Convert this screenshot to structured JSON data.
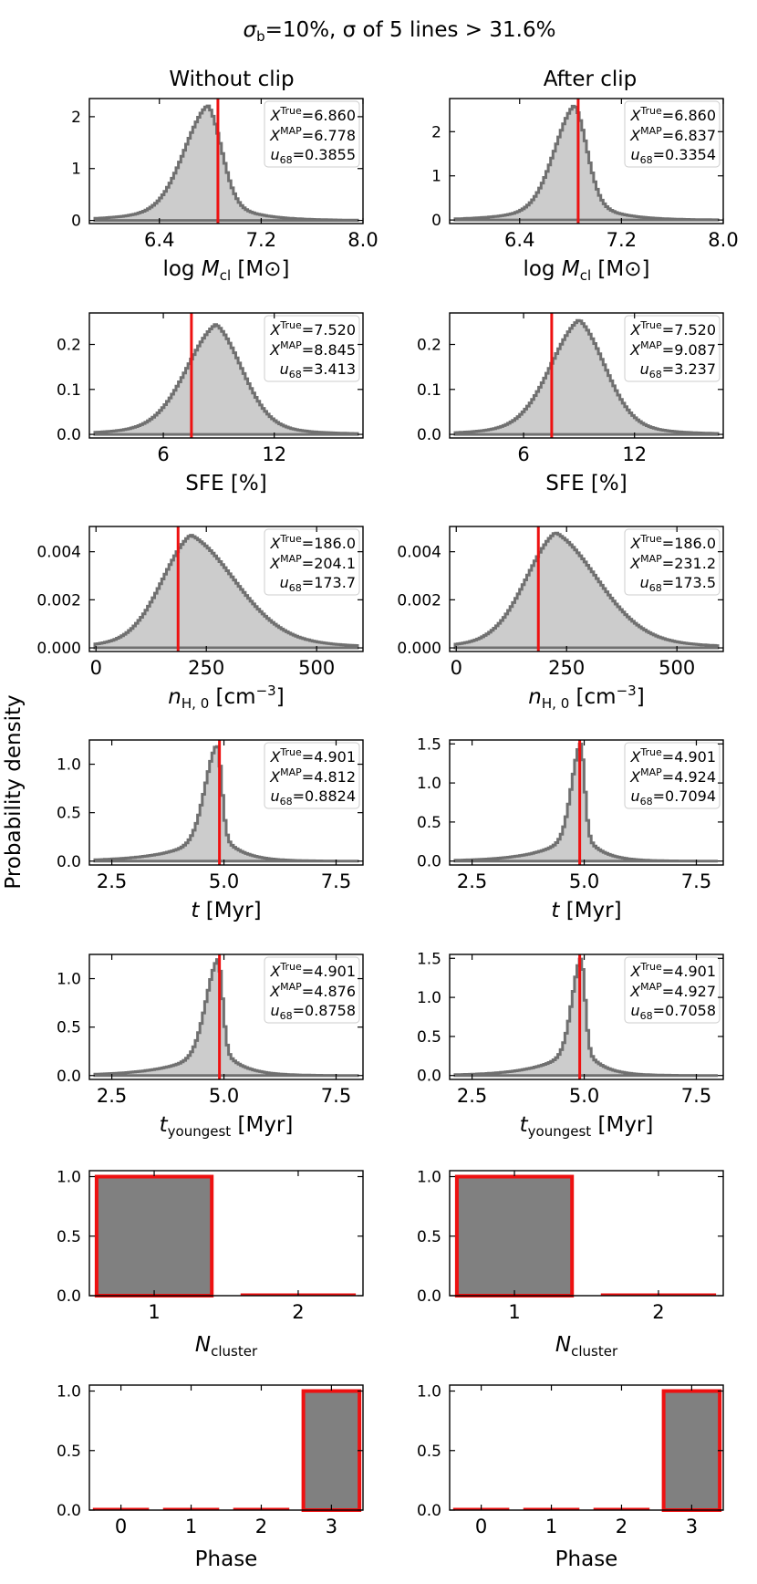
{
  "figure": {
    "title": "σb=10%, σ of 5 lines > 31.6%",
    "title_main": "σ",
    "title_sub": "b",
    "title_rest": "=10%, σ of 5 lines > 31.6%",
    "col_titles": [
      "Without clip",
      "After clip"
    ],
    "ylabel": "Probability density",
    "stat_labels": {
      "true_sup": "True",
      "map_sup": "MAP",
      "u_sub": "68"
    }
  },
  "chart_data": [
    {
      "id": "mcl-noclip",
      "type": "histogram",
      "row": 0,
      "col": 0,
      "xlabel": "log Mcl [M⊙]",
      "xlabel_parts": [
        "log ",
        "M",
        "cl",
        " [M",
        "⊙",
        "]"
      ],
      "xlim": [
        5.85,
        8.0
      ],
      "ylim": [
        -0.06,
        2.35
      ],
      "xticks": [
        6.4,
        7.2,
        8.0
      ],
      "xticklabels": [
        "6.4",
        "7.2",
        "8.0"
      ],
      "yticks": [
        0,
        1,
        2
      ],
      "yticklabels": [
        "0",
        "1",
        "2"
      ],
      "peak_x": 6.78,
      "peak_y": 2.22,
      "spread_left": 0.19,
      "spread_right": 0.11,
      "tail_left": 0.32,
      "tail_right": 0.24,
      "true_x": 6.86,
      "stats": {
        "true": "6.860",
        "map": "6.778",
        "u68": "0.3855"
      }
    },
    {
      "id": "mcl-clip",
      "type": "histogram",
      "row": 0,
      "col": 1,
      "xlabel": "log Mcl [M⊙]",
      "xlabel_parts": [
        "log ",
        "M",
        "cl",
        " [M",
        "⊙",
        "]"
      ],
      "xlim": [
        5.85,
        8.0
      ],
      "ylim": [
        -0.08,
        2.75
      ],
      "xticks": [
        6.4,
        7.2,
        8.0
      ],
      "xticklabels": [
        "6.4",
        "7.2",
        "8.0"
      ],
      "yticks": [
        0,
        1,
        2
      ],
      "yticklabels": [
        "0",
        "1",
        "2"
      ],
      "peak_x": 6.83,
      "peak_y": 2.6,
      "spread_left": 0.16,
      "spread_right": 0.1,
      "tail_left": 0.28,
      "tail_right": 0.22,
      "true_x": 6.86,
      "stats": {
        "true": "6.860",
        "map": "6.837",
        "u68": "0.3354"
      }
    },
    {
      "id": "sfe-noclip",
      "type": "histogram",
      "row": 1,
      "col": 0,
      "xlabel": "SFE [%]",
      "xlabel_parts": [
        "SFE [%]"
      ],
      "xlim": [
        2.0,
        16.8
      ],
      "ylim": [
        -0.008,
        0.27
      ],
      "xticks": [
        6,
        12
      ],
      "xticklabels": [
        "6",
        "12"
      ],
      "yticks": [
        0.0,
        0.1,
        0.2
      ],
      "yticklabels": [
        "0.0",
        "0.1",
        "0.2"
      ],
      "peak_x": 8.85,
      "peak_y": 0.245,
      "spread_left": 1.65,
      "spread_right": 1.45,
      "tail_left": 2.4,
      "tail_right": 2.1,
      "true_x": 7.52,
      "stats": {
        "true": "7.520",
        "map": "8.845",
        "u68": "3.413"
      }
    },
    {
      "id": "sfe-clip",
      "type": "histogram",
      "row": 1,
      "col": 1,
      "xlabel": "SFE [%]",
      "xlabel_parts": [
        "SFE [%]"
      ],
      "xlim": [
        2.0,
        16.8
      ],
      "ylim": [
        -0.008,
        0.27
      ],
      "xticks": [
        6,
        12
      ],
      "xticklabels": [
        "6",
        "12"
      ],
      "yticks": [
        0.0,
        0.1,
        0.2
      ],
      "yticklabels": [
        "0.0",
        "0.1",
        "0.2"
      ],
      "peak_x": 9.0,
      "peak_y": 0.255,
      "spread_left": 1.6,
      "spread_right": 1.45,
      "tail_left": 2.3,
      "tail_right": 2.1,
      "true_x": 7.52,
      "stats": {
        "true": "7.520",
        "map": "9.087",
        "u68": "3.237"
      }
    },
    {
      "id": "nh-noclip",
      "type": "histogram",
      "row": 2,
      "col": 0,
      "xlabel": "nH,0 [cm−3]",
      "xlabel_parts": [
        "n",
        "H, 0",
        " [cm",
        "−3",
        "]"
      ],
      "xlim": [
        -15,
        605
      ],
      "ylim": [
        -0.00015,
        0.00505
      ],
      "xticks": [
        0,
        250,
        500
      ],
      "xticklabels": [
        "0",
        "250",
        "500"
      ],
      "yticks": [
        0.0,
        0.002,
        0.004
      ],
      "yticklabels": [
        "0.000",
        "0.002",
        "0.004"
      ],
      "peak_x": 215,
      "peak_y": 0.0047,
      "spread_left": 68,
      "spread_right": 105,
      "tail_left": 95,
      "tail_right": 140,
      "true_x": 186,
      "stats": {
        "true": "186.0",
        "map": "204.1",
        "u68": "173.7"
      }
    },
    {
      "id": "nh-clip",
      "type": "histogram",
      "row": 2,
      "col": 1,
      "xlabel": "nH,0 [cm−3]",
      "xlabel_parts": [
        "n",
        "H, 0",
        " [cm",
        "−3",
        "]"
      ],
      "xlim": [
        -15,
        605
      ],
      "ylim": [
        -0.00015,
        0.00505
      ],
      "xticks": [
        0,
        250,
        500
      ],
      "xticklabels": [
        "0",
        "250",
        "500"
      ],
      "yticks": [
        0.0,
        0.002,
        0.004
      ],
      "yticklabels": [
        "0.000",
        "0.002",
        "0.004"
      ],
      "peak_x": 225,
      "peak_y": 0.0048,
      "spread_left": 70,
      "spread_right": 100,
      "tail_left": 98,
      "tail_right": 135,
      "true_x": 186,
      "stats": {
        "true": "186.0",
        "map": "231.2",
        "u68": "173.5"
      }
    },
    {
      "id": "t-noclip",
      "type": "histogram",
      "row": 3,
      "col": 0,
      "xlabel": "t [Myr]",
      "xlabel_parts": [
        "t",
        " [Myr]"
      ],
      "xlim": [
        2.0,
        8.1
      ],
      "ylim": [
        -0.04,
        1.25
      ],
      "xticks": [
        2.5,
        5.0,
        7.5
      ],
      "xticklabels": [
        "2.5",
        "5.0",
        "7.5"
      ],
      "yticks": [
        0.0,
        0.5,
        1.0
      ],
      "yticklabels": [
        "0.0",
        "0.5",
        "1.0"
      ],
      "peak_x": 4.85,
      "peak_y": 1.2,
      "spread_left": 0.27,
      "spread_right": 0.1,
      "tail_left": 0.85,
      "tail_right": 0.45,
      "true_x": 4.9,
      "stats": {
        "true": "4.901",
        "map": "4.812",
        "u68": "0.8824"
      }
    },
    {
      "id": "t-clip",
      "type": "histogram",
      "row": 3,
      "col": 1,
      "xlabel": "t [Myr]",
      "xlabel_parts": [
        "t",
        " [Myr]"
      ],
      "xlim": [
        2.0,
        8.1
      ],
      "ylim": [
        -0.05,
        1.55
      ],
      "xticks": [
        2.5,
        5.0,
        7.5
      ],
      "xticklabels": [
        "2.5",
        "5.0",
        "7.5"
      ],
      "yticks": [
        0.0,
        0.5,
        1.0,
        1.5
      ],
      "yticklabels": [
        "0.0",
        "0.5",
        "1.0",
        "1.5"
      ],
      "peak_x": 4.92,
      "peak_y": 1.5,
      "spread_left": 0.2,
      "spread_right": 0.09,
      "tail_left": 0.75,
      "tail_right": 0.4,
      "true_x": 4.9,
      "stats": {
        "true": "4.901",
        "map": "4.924",
        "u68": "0.7094"
      }
    },
    {
      "id": "ty-noclip",
      "type": "histogram",
      "row": 4,
      "col": 0,
      "xlabel": "tyoungest [Myr]",
      "xlabel_parts": [
        "t",
        "youngest",
        " [Myr]"
      ],
      "xlim": [
        2.0,
        8.1
      ],
      "ylim": [
        -0.04,
        1.25
      ],
      "xticks": [
        2.5,
        5.0,
        7.5
      ],
      "xticklabels": [
        "2.5",
        "5.0",
        "7.5"
      ],
      "yticks": [
        0.0,
        0.5,
        1.0
      ],
      "yticklabels": [
        "0.0",
        "0.5",
        "1.0"
      ],
      "peak_x": 4.87,
      "peak_y": 1.2,
      "spread_left": 0.27,
      "spread_right": 0.1,
      "tail_left": 0.85,
      "tail_right": 0.45,
      "true_x": 4.9,
      "stats": {
        "true": "4.901",
        "map": "4.876",
        "u68": "0.8758"
      }
    },
    {
      "id": "ty-clip",
      "type": "histogram",
      "row": 4,
      "col": 1,
      "xlabel": "tyoungest [Myr]",
      "xlabel_parts": [
        "t",
        "youngest",
        " [Myr]"
      ],
      "xlim": [
        2.0,
        8.1
      ],
      "ylim": [
        -0.05,
        1.55
      ],
      "xticks": [
        2.5,
        5.0,
        7.5
      ],
      "xticklabels": [
        "2.5",
        "5.0",
        "7.5"
      ],
      "yticks": [
        0.0,
        0.5,
        1.0,
        1.5
      ],
      "yticklabels": [
        "0.0",
        "0.5",
        "1.0",
        "1.5"
      ],
      "peak_x": 4.93,
      "peak_y": 1.5,
      "spread_left": 0.2,
      "spread_right": 0.09,
      "tail_left": 0.75,
      "tail_right": 0.4,
      "true_x": 4.9,
      "stats": {
        "true": "4.901",
        "map": "4.927",
        "u68": "0.7058"
      }
    },
    {
      "id": "ncl-noclip",
      "type": "bar",
      "row": 5,
      "col": 0,
      "xlabel": "Ncluster",
      "xlabel_parts": [
        "N",
        "cluster"
      ],
      "xlim": [
        0.55,
        2.45
      ],
      "ylim": [
        0,
        1.05
      ],
      "categories": [
        "1",
        "2"
      ],
      "category_x": [
        1,
        2
      ],
      "values": [
        1.0,
        0.01
      ],
      "bar_width": 0.8,
      "yticks": [
        0.0,
        0.5,
        1.0
      ],
      "yticklabels": [
        "0.0",
        "0.5",
        "1.0"
      ]
    },
    {
      "id": "ncl-clip",
      "type": "bar",
      "row": 5,
      "col": 1,
      "xlabel": "Ncluster",
      "xlabel_parts": [
        "N",
        "cluster"
      ],
      "xlim": [
        0.55,
        2.45
      ],
      "ylim": [
        0,
        1.05
      ],
      "categories": [
        "1",
        "2"
      ],
      "category_x": [
        1,
        2
      ],
      "values": [
        1.0,
        0.01
      ],
      "bar_width": 0.8,
      "yticks": [
        0.0,
        0.5,
        1.0
      ],
      "yticklabels": [
        "0.0",
        "0.5",
        "1.0"
      ]
    },
    {
      "id": "phase-noclip",
      "type": "bar",
      "row": 6,
      "col": 0,
      "xlabel": "Phase",
      "xlabel_parts": [
        "Phase"
      ],
      "xlim": [
        -0.45,
        3.45
      ],
      "ylim": [
        0,
        1.05
      ],
      "categories": [
        "0",
        "1",
        "2",
        "3"
      ],
      "category_x": [
        0,
        1,
        2,
        3
      ],
      "values": [
        0.01,
        0.01,
        0.01,
        1.0
      ],
      "bar_width": 0.8,
      "yticks": [
        0.0,
        0.5,
        1.0
      ],
      "yticklabels": [
        "0.0",
        "0.5",
        "1.0"
      ]
    },
    {
      "id": "phase-clip",
      "type": "bar",
      "row": 6,
      "col": 1,
      "xlabel": "Phase",
      "xlabel_parts": [
        "Phase"
      ],
      "xlim": [
        -0.45,
        3.45
      ],
      "ylim": [
        0,
        1.05
      ],
      "categories": [
        "0",
        "1",
        "2",
        "3"
      ],
      "category_x": [
        0,
        1,
        2,
        3
      ],
      "values": [
        0.01,
        0.01,
        0.01,
        1.0
      ],
      "bar_width": 0.8,
      "yticks": [
        0.0,
        0.5,
        1.0
      ],
      "yticklabels": [
        "0.0",
        "0.5",
        "1.0"
      ]
    }
  ]
}
